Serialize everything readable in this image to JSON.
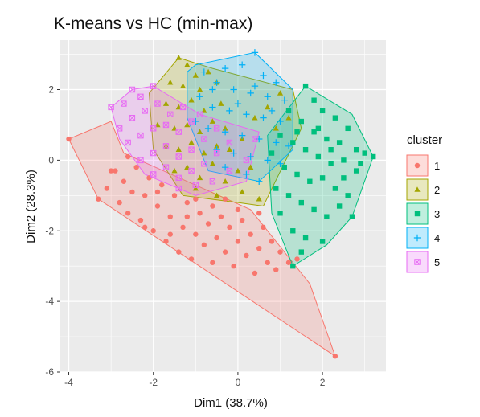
{
  "chart_data": {
    "type": "scatter",
    "title": "K-means vs HC (min-max)",
    "xlabel": "Dim1 (38.7%)",
    "ylabel": "Dim2 (28.3%)",
    "xlim": [
      -4.2,
      3.5
    ],
    "ylim": [
      -6.0,
      3.4
    ],
    "xticks": [
      -4,
      -2,
      0,
      2
    ],
    "yticks": [
      2,
      0,
      -2,
      -4,
      -6
    ],
    "xtick_labels": [
      "-4",
      "-2",
      "0",
      "2"
    ],
    "ytick_labels": [
      "2",
      "0",
      "-2",
      "-4",
      "-6"
    ],
    "grid": true,
    "legend": {
      "title": "cluster",
      "position": "right"
    },
    "panel_color": "#ebebeb",
    "series": [
      {
        "name": "1",
        "color": "#F8766D",
        "shape": "circle",
        "hull": [
          [
            -4.0,
            0.6
          ],
          [
            -3.3,
            -1.1
          ],
          [
            2.3,
            -5.55
          ],
          [
            1.7,
            -3.5
          ],
          [
            0.3,
            -1.4
          ],
          [
            -2.7,
            0.2
          ],
          [
            -3.0,
            1.1
          ]
        ],
        "points": [
          [
            -4.0,
            0.6
          ],
          [
            2.3,
            -5.55
          ],
          [
            -3.3,
            -1.1
          ],
          [
            -3.1,
            -0.8
          ],
          [
            -2.9,
            -0.3
          ],
          [
            -2.8,
            -1.2
          ],
          [
            -2.7,
            -0.6
          ],
          [
            -2.6,
            -1.5
          ],
          [
            -2.5,
            -0.9
          ],
          [
            -2.4,
            -0.2
          ],
          [
            -2.3,
            -1.7
          ],
          [
            -2.2,
            -1.0
          ],
          [
            -2.1,
            -0.5
          ],
          [
            -2.0,
            -2.0
          ],
          [
            -1.9,
            -1.3
          ],
          [
            -1.8,
            -0.7
          ],
          [
            -1.7,
            -2.3
          ],
          [
            -1.6,
            -1.6
          ],
          [
            -1.5,
            -1.0
          ],
          [
            -1.4,
            -2.6
          ],
          [
            -1.3,
            -1.9
          ],
          [
            -1.2,
            -1.2
          ],
          [
            -1.1,
            -2.8
          ],
          [
            -1.0,
            -2.1
          ],
          [
            -0.9,
            -1.5
          ],
          [
            -0.8,
            -2.4
          ],
          [
            -0.7,
            -1.8
          ],
          [
            -0.6,
            -2.9
          ],
          [
            -0.5,
            -2.2
          ],
          [
            -0.4,
            -1.6
          ],
          [
            -0.3,
            -2.6
          ],
          [
            -0.2,
            -1.9
          ],
          [
            -0.1,
            -3.0
          ],
          [
            0.0,
            -2.3
          ],
          [
            0.1,
            -1.7
          ],
          [
            0.2,
            -2.7
          ],
          [
            0.3,
            -2.1
          ],
          [
            0.4,
            -3.2
          ],
          [
            0.5,
            -2.5
          ],
          [
            0.6,
            -1.9
          ],
          [
            0.7,
            -2.9
          ],
          [
            0.8,
            -2.3
          ],
          [
            0.9,
            -3.1
          ],
          [
            1.0,
            -2.6
          ],
          [
            1.2,
            -2.9
          ],
          [
            1.4,
            -2.8
          ],
          [
            -2.2,
            -1.9
          ],
          [
            -1.6,
            -2.1
          ],
          [
            -1.2,
            -1.6
          ],
          [
            -0.6,
            -1.3
          ],
          [
            0.0,
            -1.4
          ],
          [
            -2.6,
            0.1
          ],
          [
            -3.0,
            -0.3
          ],
          [
            -1.9,
            -0.9
          ],
          [
            -1.0,
            -1.1
          ],
          [
            -0.3,
            -1.1
          ],
          [
            0.5,
            -1.5
          ]
        ]
      },
      {
        "name": "2",
        "color": "#A3A500",
        "shape": "triangle",
        "hull": [
          [
            -1.4,
            2.9
          ],
          [
            -0.6,
            2.6
          ],
          [
            1.3,
            2.0
          ],
          [
            1.5,
            0.9
          ],
          [
            0.6,
            -1.3
          ],
          [
            0.0,
            -1.2
          ],
          [
            -1.3,
            -1.0
          ],
          [
            -2.0,
            0.3
          ],
          [
            -2.1,
            1.9
          ]
        ],
        "points": [
          [
            -1.4,
            2.9
          ],
          [
            -1.2,
            2.7
          ],
          [
            -1.0,
            2.4
          ],
          [
            -0.7,
            2.5
          ],
          [
            -1.6,
            2.2
          ],
          [
            -1.3,
            2.1
          ],
          [
            -0.9,
            2.0
          ],
          [
            -0.5,
            2.2
          ],
          [
            -1.7,
            1.6
          ],
          [
            -1.4,
            1.5
          ],
          [
            -1.1,
            1.7
          ],
          [
            -0.8,
            1.4
          ],
          [
            -0.4,
            1.6
          ],
          [
            -1.9,
            1.0
          ],
          [
            -1.5,
            0.9
          ],
          [
            -1.2,
            1.0
          ],
          [
            -0.9,
            0.8
          ],
          [
            -0.6,
            1.1
          ],
          [
            -0.3,
            0.9
          ],
          [
            -1.7,
            0.4
          ],
          [
            -1.4,
            0.3
          ],
          [
            -1.1,
            0.5
          ],
          [
            -0.8,
            0.2
          ],
          [
            -0.5,
            0.4
          ],
          [
            -0.2,
            0.3
          ],
          [
            0.1,
            0.6
          ],
          [
            -1.5,
            -0.3
          ],
          [
            -1.2,
            -0.2
          ],
          [
            -0.9,
            -0.5
          ],
          [
            -0.6,
            -0.1
          ],
          [
            -0.3,
            -0.6
          ],
          [
            0.0,
            -0.3
          ],
          [
            0.3,
            -0.2
          ],
          [
            -1.0,
            -0.8
          ],
          [
            -0.5,
            -1.0
          ],
          [
            0.1,
            -0.9
          ],
          [
            0.5,
            -1.1
          ],
          [
            1.0,
            1.9
          ],
          [
            0.7,
            1.5
          ],
          [
            0.4,
            1.2
          ],
          [
            1.2,
            1.2
          ],
          [
            0.9,
            0.9
          ]
        ]
      },
      {
        "name": "3",
        "color": "#00BF7D",
        "shape": "square",
        "hull": [
          [
            1.6,
            2.1
          ],
          [
            2.7,
            1.3
          ],
          [
            3.2,
            0.1
          ],
          [
            2.7,
            -1.6
          ],
          [
            2.1,
            -2.4
          ],
          [
            1.3,
            -3.0
          ],
          [
            0.8,
            -1.5
          ],
          [
            0.7,
            0.7
          ]
        ],
        "points": [
          [
            1.6,
            2.1
          ],
          [
            1.8,
            1.7
          ],
          [
            2.0,
            1.4
          ],
          [
            2.3,
            1.2
          ],
          [
            2.6,
            0.9
          ],
          [
            1.2,
            1.4
          ],
          [
            1.5,
            1.1
          ],
          [
            1.8,
            0.8
          ],
          [
            2.1,
            0.6
          ],
          [
            2.4,
            0.5
          ],
          [
            2.8,
            0.3
          ],
          [
            3.0,
            0.2
          ],
          [
            3.2,
            0.1
          ],
          [
            1.0,
            0.7
          ],
          [
            1.3,
            0.5
          ],
          [
            1.6,
            0.3
          ],
          [
            1.9,
            0.1
          ],
          [
            2.2,
            -0.1
          ],
          [
            2.5,
            0.0
          ],
          [
            2.8,
            -0.3
          ],
          [
            1.1,
            -0.2
          ],
          [
            1.4,
            -0.4
          ],
          [
            1.7,
            -0.6
          ],
          [
            2.0,
            -0.5
          ],
          [
            2.3,
            -0.8
          ],
          [
            2.6,
            -1.0
          ],
          [
            0.9,
            -0.8
          ],
          [
            1.2,
            -1.0
          ],
          [
            1.5,
            -1.2
          ],
          [
            1.8,
            -1.4
          ],
          [
            2.1,
            -1.6
          ],
          [
            2.4,
            -1.3
          ],
          [
            1.0,
            -1.5
          ],
          [
            1.3,
            -2.0
          ],
          [
            1.6,
            -2.2
          ],
          [
            2.0,
            -2.3
          ],
          [
            1.3,
            -3.0
          ],
          [
            1.5,
            -2.6
          ],
          [
            0.8,
            0.2
          ],
          [
            2.7,
            -1.6
          ],
          [
            1.9,
            0.9
          ],
          [
            2.2,
            0.3
          ],
          [
            2.5,
            -0.5
          ],
          [
            1.4,
            0.8
          ],
          [
            2.9,
            -0.1
          ]
        ]
      },
      {
        "name": "4",
        "color": "#00B0F6",
        "shape": "plus",
        "hull": [
          [
            0.4,
            3.05
          ],
          [
            1.3,
            2.0
          ],
          [
            1.3,
            0.3
          ],
          [
            0.5,
            -0.6
          ],
          [
            -0.7,
            -0.3
          ],
          [
            -1.2,
            1.2
          ],
          [
            -1.2,
            2.5
          ],
          [
            -1.0,
            2.7
          ]
        ],
        "points": [
          [
            0.4,
            3.05
          ],
          [
            0.1,
            2.7
          ],
          [
            -0.3,
            2.6
          ],
          [
            -0.8,
            2.5
          ],
          [
            0.6,
            2.4
          ],
          [
            0.9,
            2.2
          ],
          [
            -0.5,
            2.2
          ],
          [
            -0.1,
            2.0
          ],
          [
            0.3,
            1.9
          ],
          [
            0.7,
            1.8
          ],
          [
            1.1,
            1.7
          ],
          [
            -0.9,
            1.8
          ],
          [
            -0.6,
            1.5
          ],
          [
            -0.2,
            1.4
          ],
          [
            0.2,
            1.3
          ],
          [
            0.6,
            1.2
          ],
          [
            1.0,
            1.1
          ],
          [
            -1.0,
            1.1
          ],
          [
            -0.7,
            0.9
          ],
          [
            -0.3,
            0.8
          ],
          [
            0.1,
            0.7
          ],
          [
            0.5,
            0.6
          ],
          [
            0.9,
            0.5
          ],
          [
            1.2,
            0.4
          ],
          [
            -0.5,
            0.3
          ],
          [
            -0.1,
            0.2
          ],
          [
            0.3,
            0.1
          ],
          [
            0.7,
            0.0
          ],
          [
            1.0,
            -0.1
          ],
          [
            -0.3,
            -0.2
          ],
          [
            0.2,
            -0.4
          ],
          [
            0.5,
            -0.6
          ],
          [
            -0.6,
            2.0
          ],
          [
            0.0,
            1.6
          ],
          [
            0.4,
            2.1
          ],
          [
            0.8,
            1.4
          ]
        ]
      },
      {
        "name": "5",
        "color": "#E76BF3",
        "shape": "square-cross",
        "hull": [
          [
            -3.0,
            1.5
          ],
          [
            -2.5,
            2.0
          ],
          [
            -2.0,
            2.1
          ],
          [
            -0.9,
            1.3
          ],
          [
            0.5,
            0.8
          ],
          [
            0.2,
            -0.6
          ],
          [
            -1.0,
            -1.0
          ],
          [
            -2.2,
            -0.4
          ],
          [
            -2.8,
            0.6
          ]
        ],
        "points": [
          [
            -3.0,
            1.5
          ],
          [
            -2.7,
            1.6
          ],
          [
            -2.5,
            2.0
          ],
          [
            -2.3,
            1.8
          ],
          [
            -2.0,
            2.1
          ],
          [
            -2.8,
            0.9
          ],
          [
            -2.5,
            1.2
          ],
          [
            -2.2,
            1.4
          ],
          [
            -1.9,
            1.6
          ],
          [
            -1.6,
            1.3
          ],
          [
            -2.6,
            0.5
          ],
          [
            -2.3,
            0.7
          ],
          [
            -2.0,
            0.9
          ],
          [
            -1.7,
            1.0
          ],
          [
            -1.4,
            0.8
          ],
          [
            -1.1,
            1.1
          ],
          [
            -2.3,
            0.0
          ],
          [
            -2.0,
            0.2
          ],
          [
            -1.7,
            0.4
          ],
          [
            -1.4,
            0.1
          ],
          [
            -1.1,
            0.3
          ],
          [
            -0.8,
            0.6
          ],
          [
            -0.5,
            0.9
          ],
          [
            -2.0,
            -0.4
          ],
          [
            -1.7,
            -0.2
          ],
          [
            -1.4,
            -0.5
          ],
          [
            -1.1,
            -0.3
          ],
          [
            -0.8,
            -0.1
          ],
          [
            -0.5,
            0.2
          ],
          [
            -0.2,
            0.5
          ],
          [
            -1.4,
            -0.8
          ],
          [
            -1.0,
            -0.7
          ],
          [
            -0.6,
            -0.6
          ],
          [
            -0.2,
            -0.3
          ],
          [
            0.2,
            0.0
          ],
          [
            0.4,
            0.6
          ],
          [
            -1.3,
            1.5
          ],
          [
            -0.9,
            1.3
          ]
        ]
      }
    ]
  }
}
